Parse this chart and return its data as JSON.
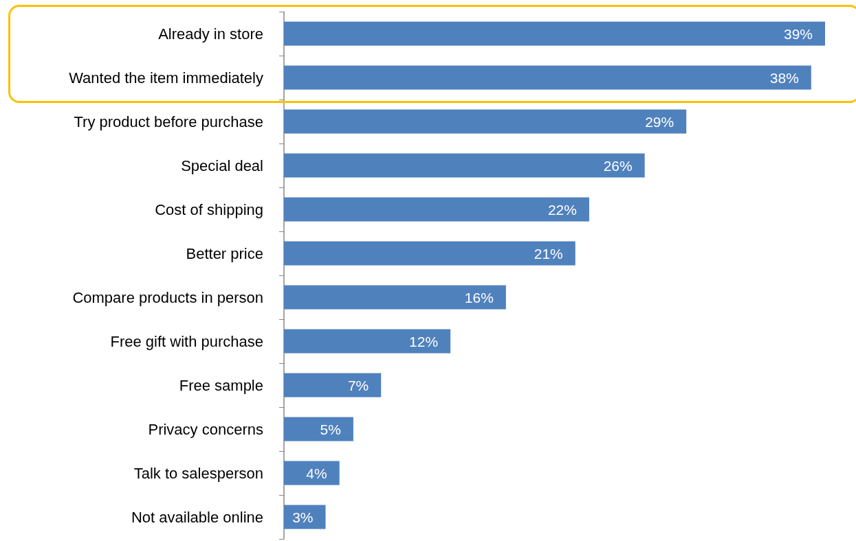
{
  "chart_data": {
    "type": "bar",
    "orientation": "horizontal",
    "categories": [
      "Already in store",
      "Wanted the item immediately",
      "Try product before purchase",
      "Special deal",
      "Cost of shipping",
      "Better price",
      "Compare products in person",
      "Free gift with purchase",
      "Free sample",
      "Privacy concerns",
      "Talk to salesperson",
      "Not available online"
    ],
    "values": [
      39,
      38,
      29,
      26,
      22,
      21,
      16,
      12,
      7,
      5,
      4,
      3
    ],
    "value_labels": [
      "39%",
      "38%",
      "29%",
      "26%",
      "22%",
      "21%",
      "16%",
      "12%",
      "7%",
      "5%",
      "4%",
      "3%"
    ],
    "color": "#4f81bd",
    "tick_labels": "y"
  }
}
